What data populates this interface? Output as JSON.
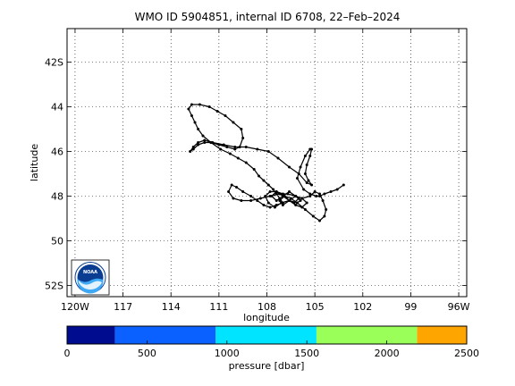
{
  "chart_data": {
    "type": "line",
    "title": "WMO ID 5904851, internal ID 6708, 22–Feb–2024",
    "xlabel": "longitude",
    "ylabel": "latitude",
    "xlim": [
      -120.5,
      -95.5
    ],
    "ylim": [
      -52.5,
      -40.5
    ],
    "x_ticks": [
      {
        "value": -120,
        "label": "120W"
      },
      {
        "value": -117,
        "label": "117"
      },
      {
        "value": -114,
        "label": "114"
      },
      {
        "value": -111,
        "label": "111"
      },
      {
        "value": -108,
        "label": "108"
      },
      {
        "value": -105,
        "label": "105"
      },
      {
        "value": -102,
        "label": "102"
      },
      {
        "value": -99,
        "label": "99"
      },
      {
        "value": -96,
        "label": "96W"
      }
    ],
    "y_ticks": [
      {
        "value": -42,
        "label": "42S"
      },
      {
        "value": -44,
        "label": "44"
      },
      {
        "value": -46,
        "label": "46"
      },
      {
        "value": -48,
        "label": "48"
      },
      {
        "value": -50,
        "label": "50"
      },
      {
        "value": -52,
        "label": "52S"
      }
    ],
    "grid": true,
    "series": [
      {
        "color": "#000000",
        "marker": "dot",
        "x": [
          -103.2,
          -103.6,
          -104.0,
          -104.4,
          -104.7,
          -104.9,
          -105.3,
          -105.7,
          -106.1,
          -105.9,
          -105.6,
          -105.3,
          -105.2,
          -105.3,
          -105.5,
          -105.6,
          -105.4,
          -105.2,
          -105.5,
          -106.0,
          -106.6,
          -107.3,
          -107.9,
          -108.6,
          -109.3,
          -110.0,
          -110.7,
          -111.4,
          -111.9,
          -112.3,
          -112.6,
          -112.8,
          -112.6,
          -112.3,
          -111.9,
          -111.5,
          -111.0,
          -110.5,
          -110.0,
          -109.7,
          -109.5,
          -109.6,
          -110.1,
          -110.6,
          -111.1,
          -111.6,
          -112.2,
          -112.7,
          -112.9,
          -112.7,
          -112.5,
          -112.3,
          -112.0,
          -111.5,
          -110.9,
          -110.3,
          -109.8,
          -109.3,
          -108.8,
          -108.5,
          -108.2,
          -107.9,
          -107.6,
          -107.4,
          -107.2,
          -107.0,
          -107.4,
          -107.8,
          -108.2,
          -108.6,
          -109.0,
          -109.5,
          -109.9,
          -110.2,
          -110.4,
          -110.1,
          -109.6,
          -109.0,
          -108.4,
          -107.8,
          -107.2,
          -106.7,
          -106.2,
          -105.8,
          -105.3,
          -105.0,
          -104.7,
          -104.5,
          -104.3,
          -104.4,
          -104.7,
          -105.1,
          -105.6,
          -106.1,
          -106.6,
          -107.1,
          -107.5,
          -107.9,
          -108.1,
          -107.8,
          -107.4,
          -107.0,
          -106.6,
          -106.2,
          -105.8,
          -105.5,
          -105.8,
          -106.2,
          -106.6,
          -107.0,
          -107.2,
          -106.9,
          -106.5,
          -106.1,
          -105.9,
          -106.2,
          -106.6,
          -107.0,
          -107.4,
          -107.7,
          -107.4,
          -107.0,
          -106.6,
          -106.3,
          -106.0
        ],
        "y": [
          -47.5,
          -47.7,
          -47.8,
          -47.9,
          -48.0,
          -48.0,
          -47.9,
          -47.7,
          -47.2,
          -46.7,
          -46.2,
          -45.9,
          -45.9,
          -46.2,
          -46.6,
          -47.0,
          -47.3,
          -47.5,
          -47.4,
          -47.0,
          -46.7,
          -46.3,
          -46.0,
          -45.9,
          -45.8,
          -45.8,
          -45.7,
          -45.6,
          -45.5,
          -45.6,
          -45.8,
          -46.0,
          -45.9,
          -45.7,
          -45.6,
          -45.6,
          -45.7,
          -45.8,
          -45.9,
          -45.8,
          -45.4,
          -45.0,
          -44.7,
          -44.4,
          -44.2,
          -44.0,
          -43.9,
          -43.9,
          -44.1,
          -44.4,
          -44.7,
          -45.0,
          -45.3,
          -45.6,
          -45.9,
          -46.1,
          -46.3,
          -46.5,
          -46.8,
          -47.1,
          -47.3,
          -47.5,
          -47.7,
          -47.9,
          -48.1,
          -48.3,
          -48.4,
          -48.5,
          -48.4,
          -48.2,
          -48.0,
          -47.8,
          -47.6,
          -47.5,
          -47.8,
          -48.1,
          -48.2,
          -48.2,
          -48.1,
          -48.0,
          -47.9,
          -47.9,
          -48.0,
          -48.1,
          -48.0,
          -47.8,
          -47.9,
          -48.2,
          -48.6,
          -48.9,
          -49.1,
          -48.9,
          -48.6,
          -48.3,
          -48.2,
          -48.3,
          -48.5,
          -48.3,
          -48.0,
          -47.8,
          -47.8,
          -48.0,
          -48.2,
          -48.4,
          -48.5,
          -48.3,
          -48.1,
          -48.0,
          -48.2,
          -48.4,
          -48.2,
          -48.0,
          -48.1,
          -48.3,
          -48.2,
          -48.0,
          -47.8,
          -48.0,
          -48.2,
          -48.0,
          -47.8,
          -47.9,
          -48.2,
          -48.3,
          -48.1
        ]
      }
    ],
    "colorbar": {
      "label": "pressure [dbar]",
      "ticks": [
        0,
        500,
        1000,
        1500,
        2000,
        2500
      ],
      "range": [
        0,
        2500
      ],
      "bands": [
        {
          "from": 0,
          "to": 300,
          "color": "#000c8f"
        },
        {
          "from": 300,
          "to": 930,
          "color": "#0b61ff"
        },
        {
          "from": 930,
          "to": 1560,
          "color": "#00e4ff"
        },
        {
          "from": 1560,
          "to": 2190,
          "color": "#9aff59"
        },
        {
          "from": 2190,
          "to": 2500,
          "color": "#ffa500"
        }
      ]
    }
  },
  "logo": {
    "text": "NOAA"
  }
}
